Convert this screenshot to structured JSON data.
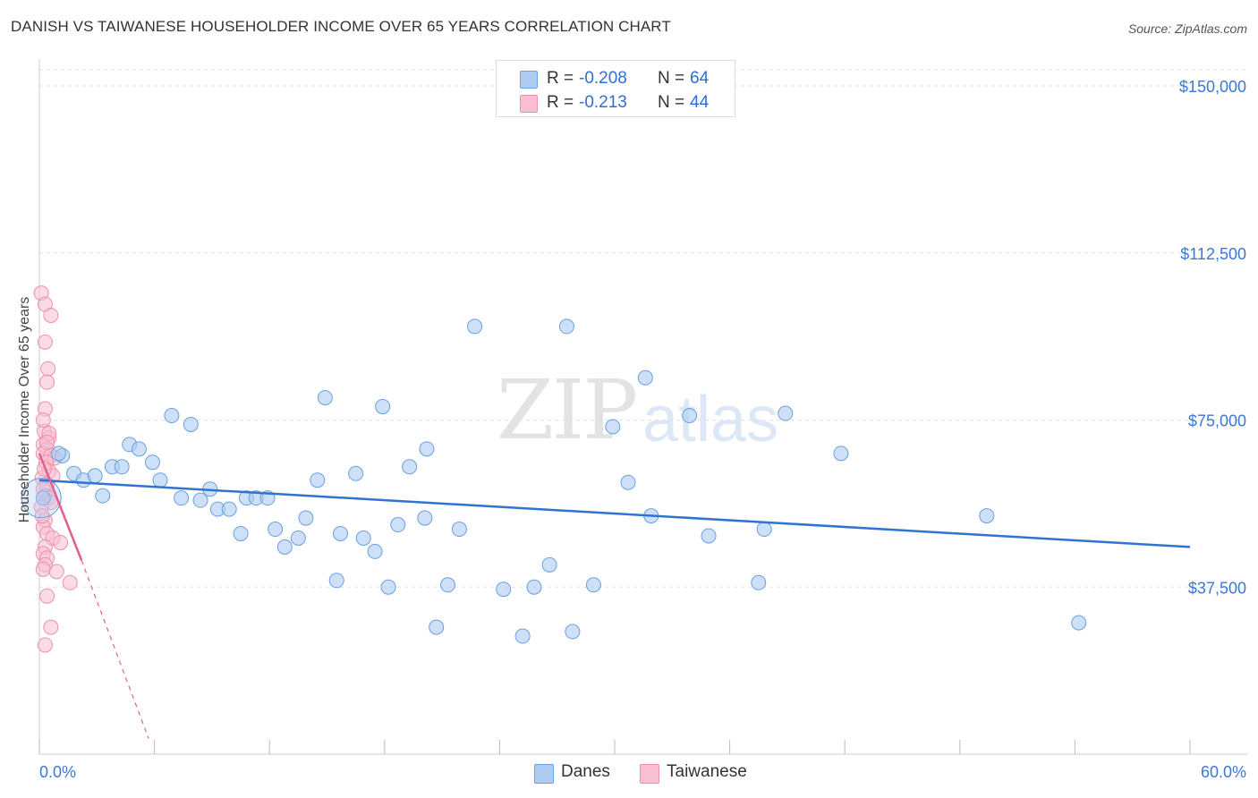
{
  "header": {
    "title": "DANISH VS TAIWANESE HOUSEHOLDER INCOME OVER 65 YEARS CORRELATION CHART",
    "source": "Source: ZipAtlas.com"
  },
  "watermark": {
    "zip": "ZIP",
    "atlas": "atlas"
  },
  "legend": {
    "rows": [
      {
        "label": "R =",
        "r_value": "-0.208",
        "n_label": "N =",
        "n_value": "64",
        "color": "#aecbf2"
      },
      {
        "label": "R =",
        "r_value": "-0.213",
        "n_label": "N =",
        "n_value": "44",
        "color": "#f8bfd0"
      }
    ]
  },
  "bottom_legend": [
    {
      "label": "Danes",
      "color": "#aecbf2"
    },
    {
      "label": "Taiwanese",
      "color": "#f8bfd0"
    }
  ],
  "chart_data": {
    "type": "scatter",
    "title": "DANISH VS TAIWANESE HOUSEHOLDER INCOME OVER 65 YEARS CORRELATION CHART",
    "xlabel": "",
    "ylabel": "Householder Income Over 65 years",
    "xlim": [
      0,
      60
    ],
    "ylim": [
      0,
      150000
    ],
    "x_tick_labels": [
      "0.0%",
      "60.0%"
    ],
    "y_ticks": [
      37500,
      75000,
      112500,
      150000
    ],
    "y_tick_labels": [
      "$37,500",
      "$75,000",
      "$112,500",
      "$150,000"
    ],
    "grid": true,
    "colors": {
      "danes": "#6a9fe0",
      "danes_fill": "#aecbf2",
      "danes_line": "#2f74d0",
      "taiwanese": "#ee8fae",
      "taiwanese_fill": "#f8bfd0",
      "taiwanese_line": "#e2608c"
    },
    "series": [
      {
        "name": "Danes",
        "trend": {
          "x0": 0.0,
          "y0": 61500,
          "x1": 60.0,
          "y1": 46500
        },
        "points": [
          [
            0.2,
            57500
          ],
          [
            1.2,
            67000
          ],
          [
            1.8,
            63000
          ],
          [
            2.3,
            61500
          ],
          [
            2.9,
            62500
          ],
          [
            3.3,
            58000
          ],
          [
            3.8,
            64500
          ],
          [
            4.3,
            64500
          ],
          [
            4.7,
            69500
          ],
          [
            5.2,
            68500
          ],
          [
            5.9,
            65500
          ],
          [
            6.3,
            61500
          ],
          [
            6.9,
            76000
          ],
          [
            7.4,
            57500
          ],
          [
            7.9,
            74000
          ],
          [
            8.4,
            57000
          ],
          [
            8.9,
            59500
          ],
          [
            9.3,
            55000
          ],
          [
            9.9,
            55000
          ],
          [
            10.5,
            49500
          ],
          [
            10.8,
            57500
          ],
          [
            11.3,
            57500
          ],
          [
            11.9,
            57500
          ],
          [
            12.3,
            50500
          ],
          [
            12.8,
            46500
          ],
          [
            13.5,
            48500
          ],
          [
            13.9,
            53000
          ],
          [
            14.5,
            61500
          ],
          [
            14.9,
            80000
          ],
          [
            15.5,
            39000
          ],
          [
            15.7,
            49500
          ],
          [
            16.5,
            63000
          ],
          [
            16.9,
            48500
          ],
          [
            17.5,
            45500
          ],
          [
            17.9,
            78000
          ],
          [
            18.2,
            37500
          ],
          [
            18.7,
            51500
          ],
          [
            19.3,
            64500
          ],
          [
            20.2,
            68500
          ],
          [
            20.1,
            53000
          ],
          [
            20.7,
            28500
          ],
          [
            21.3,
            38000
          ],
          [
            21.9,
            50500
          ],
          [
            22.7,
            96000
          ],
          [
            24.2,
            37000
          ],
          [
            25.2,
            26500
          ],
          [
            25.8,
            37500
          ],
          [
            26.6,
            42500
          ],
          [
            27.5,
            96000
          ],
          [
            27.8,
            27500
          ],
          [
            28.9,
            38000
          ],
          [
            29.9,
            73500
          ],
          [
            30.7,
            61000
          ],
          [
            31.6,
            84500
          ],
          [
            31.9,
            53500
          ],
          [
            33.9,
            76000
          ],
          [
            34.9,
            49000
          ],
          [
            37.5,
            38500
          ],
          [
            37.8,
            50500
          ],
          [
            38.9,
            76500
          ],
          [
            41.8,
            67500
          ],
          [
            49.4,
            53500
          ],
          [
            54.2,
            29500
          ],
          [
            1.0,
            67500
          ]
        ]
      },
      {
        "name": "Taiwanese",
        "trend": {
          "x0": 0.0,
          "y0": 67500,
          "x1": 2.2,
          "y1": 43500
        },
        "trend_extension": {
          "x0": 2.2,
          "y0": 43500,
          "x1": 5.7,
          "y1": 3500
        },
        "points": [
          [
            0.1,
            103500
          ],
          [
            0.3,
            101000
          ],
          [
            0.6,
            98500
          ],
          [
            0.3,
            92500
          ],
          [
            0.45,
            86500
          ],
          [
            0.4,
            83500
          ],
          [
            0.3,
            77500
          ],
          [
            0.25,
            72500
          ],
          [
            0.5,
            71000
          ],
          [
            0.2,
            69500
          ],
          [
            0.4,
            68500
          ],
          [
            0.2,
            67500
          ],
          [
            0.6,
            67000
          ],
          [
            0.8,
            66500
          ],
          [
            0.35,
            65500
          ],
          [
            0.5,
            63500
          ],
          [
            0.7,
            62500
          ],
          [
            0.15,
            62000
          ],
          [
            0.4,
            60500
          ],
          [
            0.2,
            59500
          ],
          [
            0.3,
            58000
          ],
          [
            0.5,
            57500
          ],
          [
            0.6,
            56500
          ],
          [
            0.1,
            55500
          ],
          [
            0.3,
            52500
          ],
          [
            0.2,
            51000
          ],
          [
            0.4,
            49500
          ],
          [
            0.7,
            48500
          ],
          [
            1.1,
            47500
          ],
          [
            0.3,
            46500
          ],
          [
            0.2,
            45000
          ],
          [
            0.4,
            44000
          ],
          [
            0.3,
            42500
          ],
          [
            0.2,
            41500
          ],
          [
            0.9,
            41000
          ],
          [
            1.6,
            38500
          ],
          [
            0.4,
            35500
          ],
          [
            0.6,
            28500
          ],
          [
            0.3,
            24500
          ],
          [
            0.5,
            72000
          ],
          [
            0.2,
            75000
          ],
          [
            0.4,
            70000
          ],
          [
            0.25,
            64000
          ],
          [
            0.15,
            53500
          ]
        ]
      }
    ]
  }
}
